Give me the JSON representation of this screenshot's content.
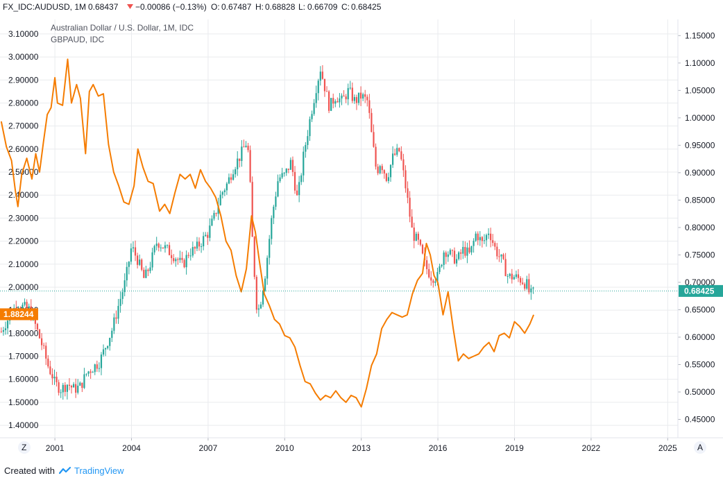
{
  "header": {
    "symbol": "FX_IDC:AUDUSD, 1M",
    "last": "0.68437",
    "change": "−0.00086 (−0.13%)",
    "o_label": "O:",
    "o_val": "0.67487",
    "h_label": "H:",
    "h_val": "0.68828",
    "l_label": "L:",
    "l_val": "0.66709",
    "c_label": "C:",
    "c_val": "0.68425"
  },
  "legend": {
    "main": "Australian Dollar / U.S. Dollar, 1M, IDC",
    "compare": "GBPAUD, IDC"
  },
  "price_tags": {
    "right": "0.68425",
    "left": "1.88244"
  },
  "corner": {
    "left_btn": "Z",
    "right_btn": "A"
  },
  "footer": {
    "created": "Created with",
    "brand": "TradingView"
  },
  "colors": {
    "up": "#26a69a",
    "down": "#ef5350",
    "compare": "#f57c00",
    "grid": "#e9ebee",
    "price_line": "#26a69a",
    "left_tag": "#f57c00"
  },
  "chart_data": {
    "type": "line",
    "x_ticks": [
      "2001",
      "2004",
      "2007",
      "2010",
      "2013",
      "2016",
      "2019",
      "2022",
      "2025"
    ],
    "x_tick_years": [
      2001,
      2004,
      2007,
      2010,
      2013,
      2016,
      2019,
      2022,
      2025
    ],
    "xlim": [
      1998.85,
      2025.4
    ],
    "left_axis": {
      "ticks": [
        "3.10000",
        "3.00000",
        "2.90000",
        "2.80000",
        "2.70000",
        "2.60000",
        "2.50000",
        "2.40000",
        "2.30000",
        "2.20000",
        "2.10000",
        "2.00000",
        "1.90000",
        "1.80000",
        "1.70000",
        "1.60000",
        "1.50000",
        "1.40000"
      ],
      "tick_values": [
        3.1,
        3.0,
        2.9,
        2.8,
        2.7,
        2.6,
        2.5,
        2.4,
        2.3,
        2.2,
        2.1,
        2.0,
        1.9,
        1.8,
        1.7,
        1.6,
        1.5,
        1.4
      ],
      "ylim": [
        1.346,
        3.163
      ]
    },
    "right_axis": {
      "ticks": [
        "1.15000",
        "1.10000",
        "1.05000",
        "1.00000",
        "0.95000",
        "0.90000",
        "0.85000",
        "0.80000",
        "0.75000",
        "0.70000",
        "0.65000",
        "0.60000",
        "0.55000",
        "0.50000",
        "0.45000"
      ],
      "tick_values": [
        1.15,
        1.1,
        1.05,
        1.0,
        0.95,
        0.9,
        0.85,
        0.8,
        0.75,
        0.7,
        0.65,
        0.6,
        0.55,
        0.5,
        0.45
      ],
      "ylim": [
        0.4165,
        1.1795
      ]
    },
    "series": [
      {
        "name": "AUDUSD",
        "type": "candlestick",
        "axis": "right",
        "close_points": [
          [
            1998.9,
            0.61
          ],
          [
            1999.0,
            0.62
          ],
          [
            1999.25,
            0.64
          ],
          [
            1999.5,
            0.66
          ],
          [
            1999.75,
            0.655
          ],
          [
            2000.0,
            0.65
          ],
          [
            2000.25,
            0.62
          ],
          [
            2000.5,
            0.585
          ],
          [
            2000.75,
            0.545
          ],
          [
            2000.9,
            0.53
          ],
          [
            2001.0,
            0.515
          ],
          [
            2001.25,
            0.505
          ],
          [
            2001.5,
            0.515
          ],
          [
            2001.75,
            0.505
          ],
          [
            2002.0,
            0.51
          ],
          [
            2002.25,
            0.535
          ],
          [
            2002.5,
            0.545
          ],
          [
            2002.75,
            0.555
          ],
          [
            2003.0,
            0.585
          ],
          [
            2003.25,
            0.615
          ],
          [
            2003.5,
            0.66
          ],
          [
            2003.75,
            0.7
          ],
          [
            2004.0,
            0.765
          ],
          [
            2004.25,
            0.74
          ],
          [
            2004.5,
            0.705
          ],
          [
            2004.75,
            0.735
          ],
          [
            2005.0,
            0.775
          ],
          [
            2005.25,
            0.765
          ],
          [
            2005.5,
            0.755
          ],
          [
            2005.75,
            0.745
          ],
          [
            2006.0,
            0.73
          ],
          [
            2006.25,
            0.755
          ],
          [
            2006.5,
            0.76
          ],
          [
            2006.75,
            0.775
          ],
          [
            2007.0,
            0.79
          ],
          [
            2007.25,
            0.82
          ],
          [
            2007.5,
            0.86
          ],
          [
            2007.75,
            0.88
          ],
          [
            2008.0,
            0.91
          ],
          [
            2008.25,
            0.93
          ],
          [
            2008.5,
            0.955
          ],
          [
            2008.6,
            0.93
          ],
          [
            2008.75,
            0.76
          ],
          [
            2008.9,
            0.66
          ],
          [
            2009.0,
            0.65
          ],
          [
            2009.25,
            0.72
          ],
          [
            2009.5,
            0.82
          ],
          [
            2009.75,
            0.89
          ],
          [
            2010.0,
            0.895
          ],
          [
            2010.25,
            0.92
          ],
          [
            2010.5,
            0.85
          ],
          [
            2010.75,
            0.935
          ],
          [
            2011.0,
            1.0
          ],
          [
            2011.25,
            1.06
          ],
          [
            2011.4,
            1.09
          ],
          [
            2011.75,
            1.02
          ],
          [
            2012.0,
            1.04
          ],
          [
            2012.25,
            1.03
          ],
          [
            2012.5,
            1.05
          ],
          [
            2012.75,
            1.03
          ],
          [
            2013.0,
            1.04
          ],
          [
            2013.25,
            1.03
          ],
          [
            2013.4,
            0.97
          ],
          [
            2013.6,
            0.9
          ],
          [
            2013.75,
            0.92
          ],
          [
            2014.0,
            0.89
          ],
          [
            2014.25,
            0.93
          ],
          [
            2014.5,
            0.94
          ],
          [
            2014.75,
            0.87
          ],
          [
            2015.0,
            0.79
          ],
          [
            2015.25,
            0.77
          ],
          [
            2015.5,
            0.73
          ],
          [
            2015.75,
            0.71
          ],
          [
            2016.0,
            0.71
          ],
          [
            2016.25,
            0.76
          ],
          [
            2016.5,
            0.75
          ],
          [
            2016.75,
            0.74
          ],
          [
            2017.0,
            0.76
          ],
          [
            2017.25,
            0.75
          ],
          [
            2017.5,
            0.79
          ],
          [
            2017.75,
            0.77
          ],
          [
            2018.0,
            0.795
          ],
          [
            2018.25,
            0.76
          ],
          [
            2018.5,
            0.74
          ],
          [
            2018.75,
            0.71
          ],
          [
            2019.0,
            0.71
          ],
          [
            2019.25,
            0.705
          ],
          [
            2019.5,
            0.695
          ],
          [
            2019.6,
            0.676
          ],
          [
            2019.8,
            0.684
          ]
        ]
      },
      {
        "name": "GBPAUD",
        "type": "line",
        "axis": "left",
        "points": [
          [
            1998.9,
            2.72
          ],
          [
            1999.1,
            2.61
          ],
          [
            1999.3,
            2.55
          ],
          [
            1999.45,
            2.42
          ],
          [
            1999.55,
            2.35
          ],
          [
            1999.7,
            2.49
          ],
          [
            1999.9,
            2.56
          ],
          [
            2000.1,
            2.47
          ],
          [
            2000.25,
            2.58
          ],
          [
            2000.4,
            2.5
          ],
          [
            2000.55,
            2.63
          ],
          [
            2000.7,
            2.75
          ],
          [
            2000.85,
            2.78
          ],
          [
            2001.0,
            2.91
          ],
          [
            2001.1,
            2.8
          ],
          [
            2001.3,
            2.79
          ],
          [
            2001.5,
            2.99
          ],
          [
            2001.65,
            2.8
          ],
          [
            2001.85,
            2.88
          ],
          [
            2002.0,
            2.82
          ],
          [
            2002.2,
            2.58
          ],
          [
            2002.35,
            2.85
          ],
          [
            2002.5,
            2.88
          ],
          [
            2002.7,
            2.83
          ],
          [
            2002.9,
            2.84
          ],
          [
            2003.1,
            2.62
          ],
          [
            2003.3,
            2.5
          ],
          [
            2003.5,
            2.44
          ],
          [
            2003.7,
            2.37
          ],
          [
            2003.9,
            2.36
          ],
          [
            2004.1,
            2.44
          ],
          [
            2004.25,
            2.6
          ],
          [
            2004.45,
            2.52
          ],
          [
            2004.65,
            2.46
          ],
          [
            2004.85,
            2.45
          ],
          [
            2005.1,
            2.33
          ],
          [
            2005.3,
            2.36
          ],
          [
            2005.5,
            2.32
          ],
          [
            2005.7,
            2.41
          ],
          [
            2005.9,
            2.49
          ],
          [
            2006.1,
            2.47
          ],
          [
            2006.3,
            2.49
          ],
          [
            2006.5,
            2.43
          ],
          [
            2006.7,
            2.51
          ],
          [
            2006.9,
            2.46
          ],
          [
            2007.1,
            2.43
          ],
          [
            2007.3,
            2.39
          ],
          [
            2007.5,
            2.31
          ],
          [
            2007.7,
            2.2
          ],
          [
            2007.9,
            2.16
          ],
          [
            2008.1,
            2.05
          ],
          [
            2008.3,
            1.98
          ],
          [
            2008.5,
            2.08
          ],
          [
            2008.7,
            2.31
          ],
          [
            2008.85,
            2.24
          ],
          [
            2009.0,
            2.12
          ],
          [
            2009.2,
            1.97
          ],
          [
            2009.4,
            1.92
          ],
          [
            2009.6,
            1.86
          ],
          [
            2009.8,
            1.84
          ],
          [
            2010.0,
            1.79
          ],
          [
            2010.2,
            1.78
          ],
          [
            2010.4,
            1.74
          ],
          [
            2010.6,
            1.66
          ],
          [
            2010.8,
            1.59
          ],
          [
            2011.0,
            1.58
          ],
          [
            2011.2,
            1.54
          ],
          [
            2011.4,
            1.51
          ],
          [
            2011.6,
            1.53
          ],
          [
            2011.8,
            1.52
          ],
          [
            2012.0,
            1.55
          ],
          [
            2012.2,
            1.52
          ],
          [
            2012.4,
            1.5
          ],
          [
            2012.6,
            1.53
          ],
          [
            2012.8,
            1.52
          ],
          [
            2013.0,
            1.48
          ],
          [
            2013.2,
            1.56
          ],
          [
            2013.4,
            1.66
          ],
          [
            2013.6,
            1.71
          ],
          [
            2013.8,
            1.82
          ],
          [
            2014.0,
            1.86
          ],
          [
            2014.2,
            1.89
          ],
          [
            2014.4,
            1.88
          ],
          [
            2014.6,
            1.87
          ],
          [
            2014.8,
            1.88
          ],
          [
            2015.0,
            1.97
          ],
          [
            2015.2,
            2.03
          ],
          [
            2015.4,
            2.06
          ],
          [
            2015.55,
            2.19
          ],
          [
            2015.7,
            2.14
          ],
          [
            2015.85,
            2.05
          ],
          [
            2016.0,
            2.02
          ],
          [
            2016.2,
            1.88
          ],
          [
            2016.4,
            1.98
          ],
          [
            2016.6,
            1.82
          ],
          [
            2016.8,
            1.68
          ],
          [
            2017.0,
            1.71
          ],
          [
            2017.2,
            1.69
          ],
          [
            2017.4,
            1.7
          ],
          [
            2017.6,
            1.71
          ],
          [
            2017.8,
            1.74
          ],
          [
            2018.0,
            1.76
          ],
          [
            2018.2,
            1.72
          ],
          [
            2018.4,
            1.79
          ],
          [
            2018.6,
            1.8
          ],
          [
            2018.8,
            1.78
          ],
          [
            2019.0,
            1.85
          ],
          [
            2019.2,
            1.83
          ],
          [
            2019.4,
            1.8
          ],
          [
            2019.6,
            1.84
          ],
          [
            2019.75,
            1.88
          ]
        ]
      }
    ]
  }
}
